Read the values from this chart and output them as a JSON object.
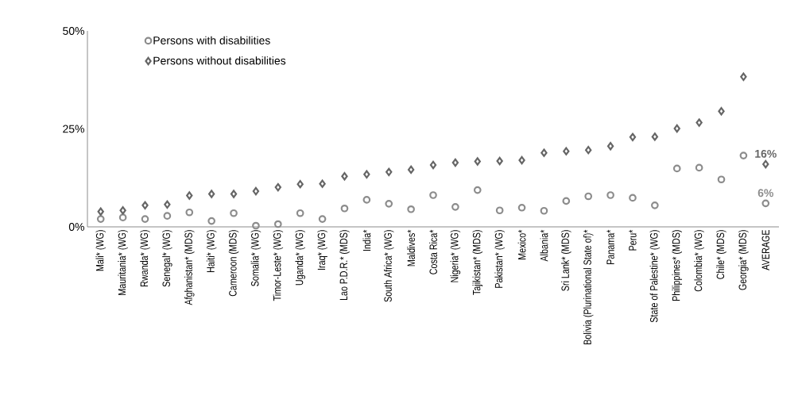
{
  "chart_data": {
    "type": "scatter",
    "categories": [
      "Mali* (WG)",
      "Mauritania* (WG)",
      "Rwanda* (WG)",
      "Senegal* (WG)",
      "Afghanistan* (MDS)",
      "Haiti* (WG)",
      "Cameroon (MDS)",
      "Somalia* (WG)",
      "Timor-Leste* (WG)",
      "Uganda* (WG)",
      "Iraq* (WG)",
      "Lao P.D.R.* (MDS)",
      "India*",
      "South Africa* (WG)",
      "Maldives*",
      "Costa Rica*",
      "Nigeria* (WG)",
      "Tajikistan* (MDS)",
      "Pakistan* (WG)",
      "Mexico*",
      "Albania*",
      "Sri Lank* (MDS)",
      "Bolivia (Plurinational State of)*",
      "Panama*",
      "Peru*",
      "State of Palestine* (WG)",
      "Philippines* (MDS)",
      "Colombia* (WG)",
      "Chile* (MDS)",
      "Georgia* (MDS)",
      "AVERAGE"
    ],
    "series": [
      {
        "name": "Persons with disabilities",
        "color": "#8c8c8c",
        "marker": "circle",
        "values": [
          2.0,
          2.4,
          2.0,
          2.8,
          3.7,
          1.5,
          3.5,
          0.3,
          0.7,
          3.5,
          2.0,
          4.7,
          6.9,
          5.9,
          4.5,
          8.1,
          5.1,
          9.4,
          4.2,
          4.9,
          4.1,
          6.6,
          7.8,
          8.1,
          7.4,
          5.5,
          14.9,
          15.1,
          12.1,
          18.2,
          6
        ],
        "value_labels": [
          null,
          null,
          null,
          null,
          null,
          null,
          null,
          null,
          null,
          null,
          null,
          null,
          null,
          null,
          null,
          null,
          null,
          null,
          null,
          null,
          null,
          null,
          null,
          null,
          null,
          null,
          null,
          null,
          null,
          null,
          "6%"
        ]
      },
      {
        "name": "Persons without disabilities",
        "color": "#666666",
        "marker": "diamond",
        "values": [
          3.9,
          4.2,
          5.5,
          5.7,
          8.0,
          8.4,
          8.4,
          9.1,
          10.1,
          10.9,
          11.0,
          12.9,
          13.4,
          14.0,
          14.6,
          15.8,
          16.4,
          16.7,
          16.8,
          17.0,
          18.9,
          19.3,
          19.6,
          20.6,
          22.9,
          23.0,
          25.1,
          26.6,
          29.5,
          38.3,
          16
        ],
        "value_labels": [
          null,
          null,
          null,
          null,
          null,
          null,
          null,
          null,
          null,
          null,
          null,
          null,
          null,
          null,
          null,
          null,
          null,
          null,
          null,
          null,
          null,
          null,
          null,
          null,
          null,
          null,
          null,
          null,
          null,
          null,
          "16%"
        ]
      }
    ],
    "ylim": [
      0,
      50
    ],
    "yticks": [
      {
        "value": 0,
        "label": "0%"
      },
      {
        "value": 25,
        "label": "25%"
      },
      {
        "value": 50,
        "label": "50%"
      }
    ],
    "grid": false,
    "legend": "top left"
  }
}
